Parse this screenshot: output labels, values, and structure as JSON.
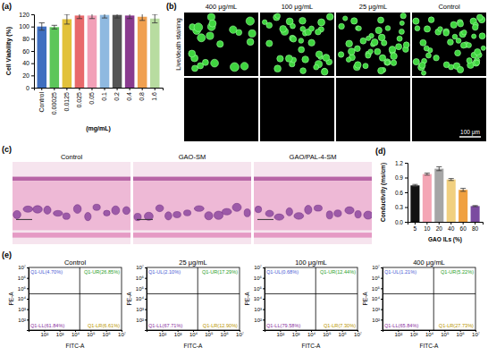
{
  "figure": {
    "panel_labels": [
      "(a)",
      "(b)",
      "(c)",
      "(d)",
      "(e)"
    ],
    "live_dead": {
      "row_label": "Live/death staining",
      "columns": [
        "400 μg/mL",
        "100 μg/mL",
        "25 μg/mL",
        "Control"
      ],
      "scale_bar": "100 μm"
    },
    "histology": {
      "columns": [
        "Control",
        "GAO-SM",
        "GAO/PAL-4-SM"
      ]
    }
  },
  "chart_data": [
    {
      "type": "bar",
      "y_label": "Cell Viability (%)",
      "x_label": "(mg/mL)",
      "categories": [
        "Control",
        "0.00025",
        "0.0125",
        "0.025",
        "0.05",
        "0.1",
        "0.2",
        "0.4",
        "0.8",
        "1.6"
      ],
      "values": [
        100,
        99,
        112,
        118,
        118,
        119,
        119,
        118,
        116,
        113
      ],
      "errors": [
        6,
        3,
        8,
        5,
        5,
        5,
        5,
        5,
        6,
        7
      ],
      "colors": [
        "#3f6fc0",
        "#5cc65a",
        "#e2c13a",
        "#e8696b",
        "#f2a0b8",
        "#8fb9e0",
        "#555555",
        "#8a3b8f",
        "#f0a050",
        "#b8dca0"
      ],
      "ylim": [
        0,
        120
      ],
      "yticks": [
        0,
        20,
        40,
        60,
        80,
        100,
        120
      ],
      "grid": false
    },
    {
      "type": "bar",
      "y_label": "Conductivity (ms/cm)",
      "x_label": "GAO ILs (%)",
      "categories": [
        "5",
        "10",
        "20",
        "40",
        "60",
        "80"
      ],
      "values": [
        0.74,
        0.97,
        1.08,
        0.86,
        0.65,
        0.32
      ],
      "errors": [
        0.02,
        0.02,
        0.04,
        0.02,
        0.03,
        0.01
      ],
      "colors": [
        "#111111",
        "#f4a6b5",
        "#a6a6a6",
        "#f1d080",
        "#f0a040",
        "#7b4ba0"
      ],
      "ylim": [
        0,
        1.2
      ],
      "yticks": [
        {
          "value": 0,
          "label": "0.0"
        },
        0.3,
        0.6,
        0.9,
        1.2
      ],
      "grid": false
    },
    {
      "type": "scatter",
      "title": "Control",
      "x_label": "FITC-A",
      "y_label": "PE-A",
      "log": true,
      "xlim": [
        10,
        10000000
      ],
      "ylim": [
        10,
        10000000
      ],
      "xticks": [
        {
          "value": 100,
          "label": "10²"
        },
        {
          "value": 1000,
          "label": "10³"
        },
        {
          "value": 10000,
          "label": "10⁴"
        },
        {
          "value": 100000,
          "label": "10⁵"
        },
        {
          "value": 1000000,
          "label": "10⁶"
        },
        {
          "value": 10000000,
          "label": "10⁷"
        }
      ],
      "yticks": [
        {
          "value": 100,
          "label": "10²"
        },
        {
          "value": 1000,
          "label": "10³"
        },
        {
          "value": 10000,
          "label": "10⁴"
        },
        {
          "value": 100000,
          "label": "10⁵"
        },
        {
          "value": 1000000,
          "label": "10⁶"
        },
        {
          "value": 10000000,
          "label": "10⁷"
        }
      ],
      "gate": {
        "x": 20000,
        "y": 30000
      },
      "annotations": [
        "Q1-UL(4.70%)",
        "Q1-UR(26.85%)",
        "Q1-LL(61.84%)",
        "Q1-LR(6.61%)"
      ]
    },
    {
      "type": "scatter",
      "title": "25 μg/mL",
      "x_label": "FITC-A",
      "y_label": "PE-A",
      "log": true,
      "xlim": [
        10,
        10000000
      ],
      "ylim": [
        10,
        10000000
      ],
      "xticks": [
        {
          "value": 100,
          "label": "10²"
        },
        {
          "value": 1000,
          "label": "10³"
        },
        {
          "value": 10000,
          "label": "10⁴"
        },
        {
          "value": 100000,
          "label": "10⁵"
        },
        {
          "value": 1000000,
          "label": "10⁶"
        },
        {
          "value": 10000000,
          "label": "10⁷"
        }
      ],
      "yticks": [
        {
          "value": 100,
          "label": "10²"
        },
        {
          "value": 1000,
          "label": "10³"
        },
        {
          "value": 10000,
          "label": "10⁴"
        },
        {
          "value": 100000,
          "label": "10⁵"
        },
        {
          "value": 1000000,
          "label": "10⁶"
        },
        {
          "value": 10000000,
          "label": "10⁷"
        }
      ],
      "gate": {
        "x": 20000,
        "y": 30000
      },
      "annotations": [
        "Q1-UL(2.10%)",
        "Q1-UR(17.29%)",
        "Q1-LL(67.71%)",
        "Q1-LR(12.90%)"
      ]
    },
    {
      "type": "scatter",
      "title": "100 μg/mL",
      "x_label": "FITC-A",
      "y_label": "PE-A",
      "log": true,
      "xlim": [
        10,
        10000000
      ],
      "ylim": [
        10,
        10000000
      ],
      "xticks": [
        {
          "value": 100,
          "label": "10²"
        },
        {
          "value": 1000,
          "label": "10³"
        },
        {
          "value": 10000,
          "label": "10⁴"
        },
        {
          "value": 100000,
          "label": "10⁵"
        },
        {
          "value": 1000000,
          "label": "10⁶"
        },
        {
          "value": 10000000,
          "label": "10⁷"
        }
      ],
      "yticks": [
        {
          "value": 100,
          "label": "10²"
        },
        {
          "value": 1000,
          "label": "10³"
        },
        {
          "value": 10000,
          "label": "10⁴"
        },
        {
          "value": 100000,
          "label": "10⁵"
        },
        {
          "value": 1000000,
          "label": "10⁶"
        },
        {
          "value": 10000000,
          "label": "10⁷"
        }
      ],
      "gate": {
        "x": 20000,
        "y": 30000
      },
      "annotations": [
        "Q1-UL(0.68%)",
        "Q1-UR(12.44%)",
        "Q1-LL(79.58%)",
        "Q1-LR(7.30%)"
      ]
    },
    {
      "type": "scatter",
      "title": "400 μg/mL",
      "x_label": "FITC-A",
      "y_label": "PE-A",
      "log": true,
      "xlim": [
        10,
        10000000
      ],
      "ylim": [
        10,
        10000000
      ],
      "xticks": [
        {
          "value": 100,
          "label": "10²"
        },
        {
          "value": 1000,
          "label": "10³"
        },
        {
          "value": 10000,
          "label": "10⁴"
        },
        {
          "value": 100000,
          "label": "10⁵"
        },
        {
          "value": 1000000,
          "label": "10⁶"
        },
        {
          "value": 10000000,
          "label": "10⁷"
        }
      ],
      "yticks": [
        {
          "value": 100,
          "label": "10²"
        },
        {
          "value": 1000,
          "label": "10³"
        },
        {
          "value": 10000,
          "label": "10⁴"
        },
        {
          "value": 100000,
          "label": "10⁵"
        },
        {
          "value": 1000000,
          "label": "10⁶"
        },
        {
          "value": 10000000,
          "label": "10⁷"
        }
      ],
      "gate": {
        "x": 20000,
        "y": 30000
      },
      "annotations": [
        "Q1-UL(1.21%)",
        "Q1-UR(5.22%)",
        "Q1-LL(65.84%)",
        "Q1-LR(27.73%)"
      ]
    }
  ]
}
